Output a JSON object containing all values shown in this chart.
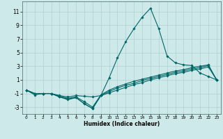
{
  "xlabel": "Humidex (Indice chaleur)",
  "ylabel": "",
  "background_color": "#cee9e9",
  "grid_color": "#b0d0d0",
  "line_color": "#006666",
  "xlim": [
    -0.5,
    23.5
  ],
  "ylim": [
    -4.0,
    12.5
  ],
  "xticks": [
    0,
    1,
    2,
    3,
    4,
    5,
    6,
    7,
    8,
    9,
    10,
    11,
    12,
    13,
    14,
    15,
    16,
    17,
    18,
    19,
    20,
    21,
    22,
    23
  ],
  "yticks": [
    -3,
    -1,
    1,
    3,
    5,
    7,
    9,
    11
  ],
  "series": [
    {
      "x": [
        0,
        1,
        2,
        3,
        4,
        5,
        6,
        7,
        8,
        9,
        10,
        11,
        12,
        13,
        14,
        15,
        16,
        17,
        18,
        19,
        20,
        21,
        22,
        23
      ],
      "y": [
        -0.5,
        -1.2,
        -1.0,
        -1.0,
        -1.3,
        -1.5,
        -1.3,
        -1.4,
        -1.5,
        -1.3,
        1.3,
        4.2,
        6.6,
        8.5,
        10.2,
        11.5,
        8.5,
        4.5,
        3.5,
        3.2,
        3.1,
        2.0,
        1.5,
        1.0
      ]
    },
    {
      "x": [
        0,
        1,
        2,
        3,
        4,
        5,
        6,
        7,
        8,
        9,
        10,
        11,
        12,
        13,
        14,
        15,
        16,
        17,
        18,
        19,
        20,
        21,
        22,
        23
      ],
      "y": [
        -0.5,
        -1.0,
        -1.0,
        -1.0,
        -1.5,
        -1.8,
        -1.6,
        -2.5,
        -3.2,
        -1.3,
        -0.9,
        -0.5,
        -0.1,
        0.3,
        0.6,
        1.0,
        1.3,
        1.6,
        1.9,
        2.1,
        2.4,
        2.6,
        2.9,
        1.0
      ]
    },
    {
      "x": [
        0,
        1,
        2,
        3,
        4,
        5,
        6,
        7,
        8,
        9,
        10,
        11,
        12,
        13,
        14,
        15,
        16,
        17,
        18,
        19,
        20,
        21,
        22,
        23
      ],
      "y": [
        -0.5,
        -1.0,
        -1.0,
        -1.0,
        -1.5,
        -1.9,
        -1.6,
        -2.5,
        -3.2,
        -1.3,
        -0.7,
        -0.2,
        0.2,
        0.5,
        0.9,
        1.2,
        1.5,
        1.8,
        2.1,
        2.3,
        2.6,
        2.8,
        3.1,
        1.0
      ]
    },
    {
      "x": [
        0,
        1,
        2,
        3,
        4,
        5,
        6,
        7,
        8,
        9,
        10,
        11,
        12,
        13,
        14,
        15,
        16,
        17,
        18,
        19,
        20,
        21,
        22,
        23
      ],
      "y": [
        -0.5,
        -1.0,
        -1.0,
        -1.0,
        -1.4,
        -1.7,
        -1.5,
        -2.2,
        -3.0,
        -1.2,
        -0.5,
        0.0,
        0.4,
        0.8,
        1.1,
        1.4,
        1.7,
        2.0,
        2.3,
        2.5,
        2.8,
        3.0,
        3.2,
        1.0
      ]
    }
  ]
}
